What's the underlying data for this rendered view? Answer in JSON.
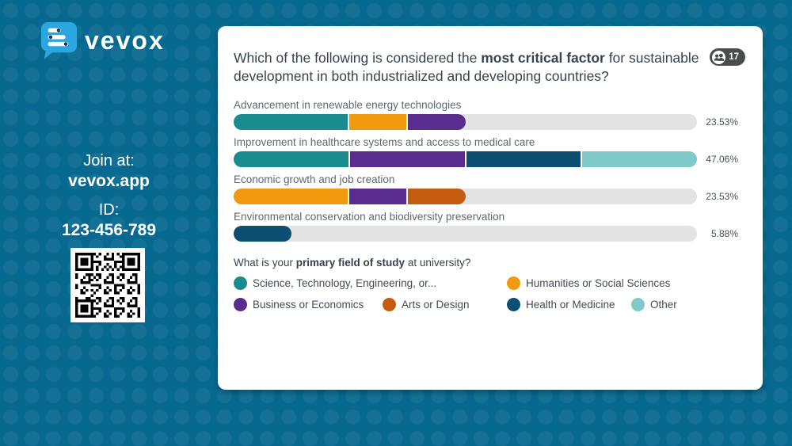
{
  "branding": {
    "logo_text": "vevox",
    "join_label": "Join at:",
    "join_url": "vevox.app",
    "id_label": "ID:",
    "id_value": "123-456-789"
  },
  "poll": {
    "question": {
      "before": "Which of the following is considered the ",
      "bold": "most critical factor",
      "after": " for sustainable development in both industrialized and developing countries?"
    },
    "responses_badge": {
      "count": "17",
      "icon": "people-icon"
    },
    "scale_max_votes": 8,
    "colors": {
      "teal": "#1a8c90",
      "orange": "#f19a0e",
      "purple": "#5b2c90",
      "rust": "#c45c10",
      "navy": "#0d4f73",
      "aqua": "#7fc9c8",
      "track": "#e3e3e3",
      "background": "#07698f",
      "badge": "#4a4c4d"
    },
    "options": [
      {
        "label": "Advancement in renewable energy technologies",
        "percent_label": "23.53%",
        "segments": [
          {
            "color": "teal",
            "votes": 2
          },
          {
            "color": "orange",
            "votes": 1
          },
          {
            "color": "purple",
            "votes": 1
          }
        ]
      },
      {
        "label": "Improvement in healthcare systems and access to medical care",
        "percent_label": "47.06%",
        "segments": [
          {
            "color": "teal",
            "votes": 2
          },
          {
            "color": "purple",
            "votes": 2
          },
          {
            "color": "navy",
            "votes": 2
          },
          {
            "color": "aqua",
            "votes": 2
          }
        ]
      },
      {
        "label": "Economic growth and job creation",
        "percent_label": "23.53%",
        "segments": [
          {
            "color": "orange",
            "votes": 2
          },
          {
            "color": "purple",
            "votes": 1
          },
          {
            "color": "rust",
            "votes": 1
          }
        ]
      },
      {
        "label": "Environmental conservation and biodiversity preservation",
        "percent_label": "5.88%",
        "segments": [
          {
            "color": "navy",
            "votes": 1
          }
        ]
      }
    ],
    "legend": {
      "title": {
        "before": "What is your ",
        "bold": "primary field of study",
        "after": " at university?"
      },
      "rows": [
        [
          {
            "color": "teal",
            "label": "Science, Technology, Engineering, or..."
          },
          {
            "color": "orange",
            "label": "Humanities or Social Sciences"
          }
        ],
        [
          {
            "color": "purple",
            "label": "Business or Economics"
          },
          {
            "color": "rust",
            "label": "Arts or Design"
          },
          {
            "color": "navy",
            "label": "Health or Medicine"
          },
          {
            "color": "aqua",
            "label": "Other"
          }
        ]
      ]
    }
  },
  "chart_data": {
    "type": "bar",
    "orientation": "horizontal",
    "title": "Which of the following is considered the most critical factor for sustainable development in both industrialized and developing countries?",
    "respondents": 17,
    "categories": [
      "Advancement in renewable energy technologies",
      "Improvement in healthcare systems and access to medical care",
      "Economic growth and job creation",
      "Environmental conservation and biodiversity preservation"
    ],
    "values": [
      23.53,
      47.06,
      23.53,
      5.88
    ],
    "unit": "%",
    "bars_scaled_to_max": 47.06,
    "crossbreak_question": "What is your primary field of study at university?",
    "series": [
      {
        "name": "Science, Technology, Engineering, or...",
        "votes": [
          2,
          2,
          0,
          0
        ]
      },
      {
        "name": "Humanities or Social Sciences",
        "votes": [
          1,
          0,
          2,
          0
        ]
      },
      {
        "name": "Business or Economics",
        "votes": [
          1,
          2,
          1,
          0
        ]
      },
      {
        "name": "Arts or Design",
        "votes": [
          0,
          0,
          1,
          0
        ]
      },
      {
        "name": "Health or Medicine",
        "votes": [
          0,
          2,
          0,
          1
        ]
      },
      {
        "name": "Other",
        "votes": [
          0,
          2,
          0,
          0
        ]
      }
    ],
    "legend_position": "bottom",
    "grid": false
  }
}
